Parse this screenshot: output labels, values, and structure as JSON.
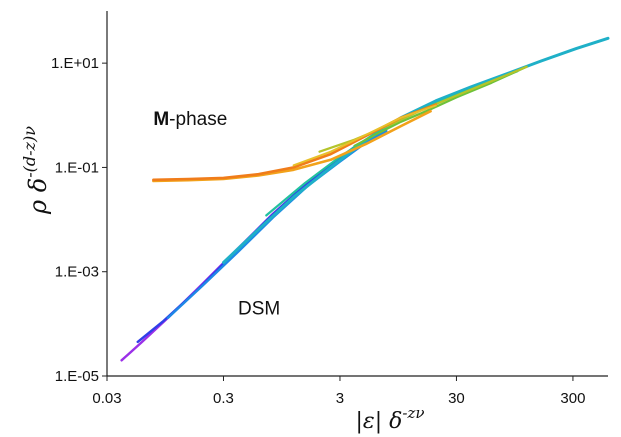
{
  "chart_data": {
    "type": "line",
    "x_scale": "log",
    "y_scale": "log",
    "xlim": [
      0.03,
      600
    ],
    "ylim": [
      1e-05,
      100
    ],
    "grid": false,
    "legend": "none",
    "x_ticks": [
      {
        "value": 0.03,
        "label": "0.03"
      },
      {
        "value": 0.3,
        "label": "0.3"
      },
      {
        "value": 3,
        "label": "3"
      },
      {
        "value": 30,
        "label": "30"
      },
      {
        "value": 300,
        "label": "300"
      }
    ],
    "y_ticks": [
      {
        "value": 1e-05,
        "label": "1.E-05"
      },
      {
        "value": 0.001,
        "label": "1.E-03"
      },
      {
        "value": 0.1,
        "label": "1.E-01"
      },
      {
        "value": 10,
        "label": "1.E+01"
      }
    ],
    "xlabel": {
      "base_left": "|ε|",
      "base_right": "δ",
      "exponent": "-zν"
    },
    "ylabel": {
      "base": "ρ δ",
      "exponent": "-(d-z)ν"
    },
    "annotations": [
      {
        "id": "m-phase",
        "bold": "M",
        "text": "-phase",
        "x": 0.075,
        "y": 0.65
      },
      {
        "id": "dsm",
        "bold": "",
        "text": "DSM",
        "x": 0.4,
        "y": 0.00015
      }
    ],
    "series": [
      {
        "color": "#9b30e8",
        "width": 2.4,
        "x": [
          0.04,
          0.06,
          0.1,
          0.2,
          0.4,
          0.8,
          1.5
        ],
        "y": [
          2e-05,
          4.5e-05,
          0.00013,
          0.0006,
          0.0028,
          0.013,
          0.045
        ]
      },
      {
        "color": "#2f3fe8",
        "width": 2.4,
        "x": [
          0.055,
          0.09,
          0.18,
          0.35,
          0.7,
          1.4,
          2.5,
          4.2
        ],
        "y": [
          4.5e-05,
          0.00011,
          0.00045,
          0.002,
          0.0095,
          0.04,
          0.11,
          0.27
        ]
      },
      {
        "color": "#1e88e6",
        "width": 2.4,
        "x": [
          0.1,
          0.2,
          0.4,
          0.8,
          1.6,
          3,
          5,
          7.5
        ],
        "y": [
          0.00013,
          0.00055,
          0.0024,
          0.011,
          0.045,
          0.13,
          0.3,
          0.5
        ]
      },
      {
        "color": "#1fb0c8",
        "width": 3,
        "x": [
          0.3,
          0.6,
          1.2,
          2.5,
          5,
          10,
          20,
          40,
          80,
          160,
          320,
          600
        ],
        "y": [
          0.0015,
          0.0065,
          0.027,
          0.1,
          0.33,
          0.9,
          1.9,
          3.5,
          6.2,
          11,
          19,
          30
        ]
      },
      {
        "color": "#22c1a0",
        "width": 2.2,
        "x": [
          0.7,
          1.5,
          3,
          6,
          12,
          25,
          50,
          100
        ],
        "y": [
          0.012,
          0.05,
          0.16,
          0.45,
          1.05,
          2.1,
          3.9,
          7
        ]
      },
      {
        "color": "#6dc23a",
        "width": 2.2,
        "x": [
          4,
          6,
          10,
          18,
          30,
          60,
          120
        ],
        "y": [
          0.26,
          0.42,
          0.75,
          1.3,
          2.2,
          4.2,
          8.5
        ]
      },
      {
        "color": "#b4c42a",
        "width": 2.2,
        "x": [
          2,
          4,
          8,
          15,
          30,
          60,
          120
        ],
        "y": [
          0.2,
          0.34,
          0.65,
          1.25,
          2.4,
          4.5,
          8.5
        ]
      },
      {
        "color": "#f2a21a",
        "width": 2.6,
        "x": [
          0.075,
          0.15,
          0.3,
          0.6,
          1.2,
          2.5,
          5,
          10,
          18
        ],
        "y": [
          0.055,
          0.057,
          0.06,
          0.07,
          0.09,
          0.14,
          0.28,
          0.62,
          1.2
        ]
      },
      {
        "color": "#f07c1a",
        "width": 2.6,
        "x": [
          0.075,
          0.15,
          0.3,
          0.6,
          1.2,
          2.5,
          5,
          10,
          20
        ],
        "y": [
          0.058,
          0.06,
          0.063,
          0.074,
          0.1,
          0.18,
          0.4,
          0.9,
          1.6
        ]
      },
      {
        "color": "#e8c02a",
        "width": 2,
        "x": [
          1.2,
          2.5,
          5,
          10,
          20
        ],
        "y": [
          0.11,
          0.2,
          0.42,
          0.9,
          1.55
        ]
      }
    ]
  }
}
